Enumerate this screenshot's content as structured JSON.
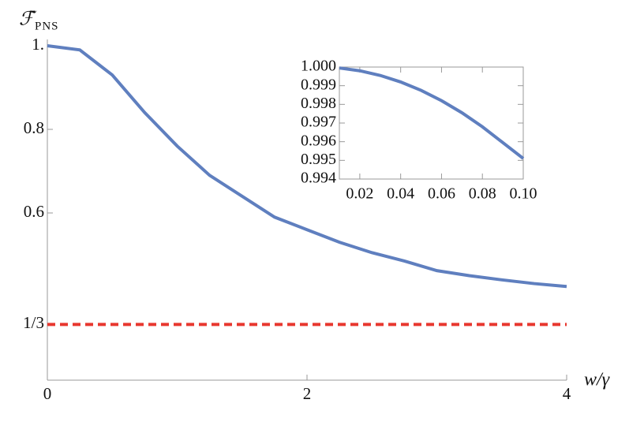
{
  "chart_data": [
    {
      "type": "line",
      "x_label": "w/γ",
      "y_label": "ℱ̄",
      "y_label_subscript": "PNS",
      "x": [
        0,
        0.25,
        0.5,
        0.75,
        1,
        1.25,
        1.5,
        1.75,
        2,
        2.25,
        2.5,
        2.75,
        3,
        3.25,
        3.5,
        3.75,
        4
      ],
      "series": [
        {
          "color": "#5f7fbf",
          "values": [
            1.0,
            0.99,
            0.93,
            0.84,
            0.76,
            0.69,
            0.64,
            0.59,
            0.56,
            0.53,
            0.505,
            0.485,
            0.462,
            0.45,
            0.44,
            0.431,
            0.424
          ]
        }
      ],
      "reference_line": {
        "y": 0.3333,
        "color": "#e8372f",
        "style": "dashed"
      },
      "xlim": [
        0,
        4
      ],
      "ylim": [
        0.2,
        1.0
      ],
      "xticks": [
        0,
        2,
        4
      ],
      "yticks": [
        {
          "value": 0.3333,
          "label": "1/3"
        },
        0.6,
        0.8,
        {
          "value": 1,
          "label": "1."
        }
      ]
    },
    {
      "type": "line",
      "x": [
        0.01,
        0.02,
        0.03,
        0.04,
        0.05,
        0.06,
        0.07,
        0.08,
        0.09,
        0.1
      ],
      "series": [
        {
          "color": "#5f7fbf",
          "values": [
            0.99995,
            0.9998,
            0.99955,
            0.9992,
            0.99875,
            0.9982,
            0.99755,
            0.9968,
            0.99595,
            0.9951
          ]
        }
      ],
      "xlim": [
        0.01,
        0.1
      ],
      "ylim": [
        0.994,
        1.0
      ],
      "xticks": [
        0.02,
        0.04,
        0.06,
        0.08,
        {
          "value": 0.1,
          "label": "0.10"
        }
      ],
      "yticks": [
        0.994,
        0.995,
        0.996,
        0.997,
        0.998,
        0.999,
        {
          "value": 1,
          "label": "1.000"
        }
      ]
    }
  ]
}
